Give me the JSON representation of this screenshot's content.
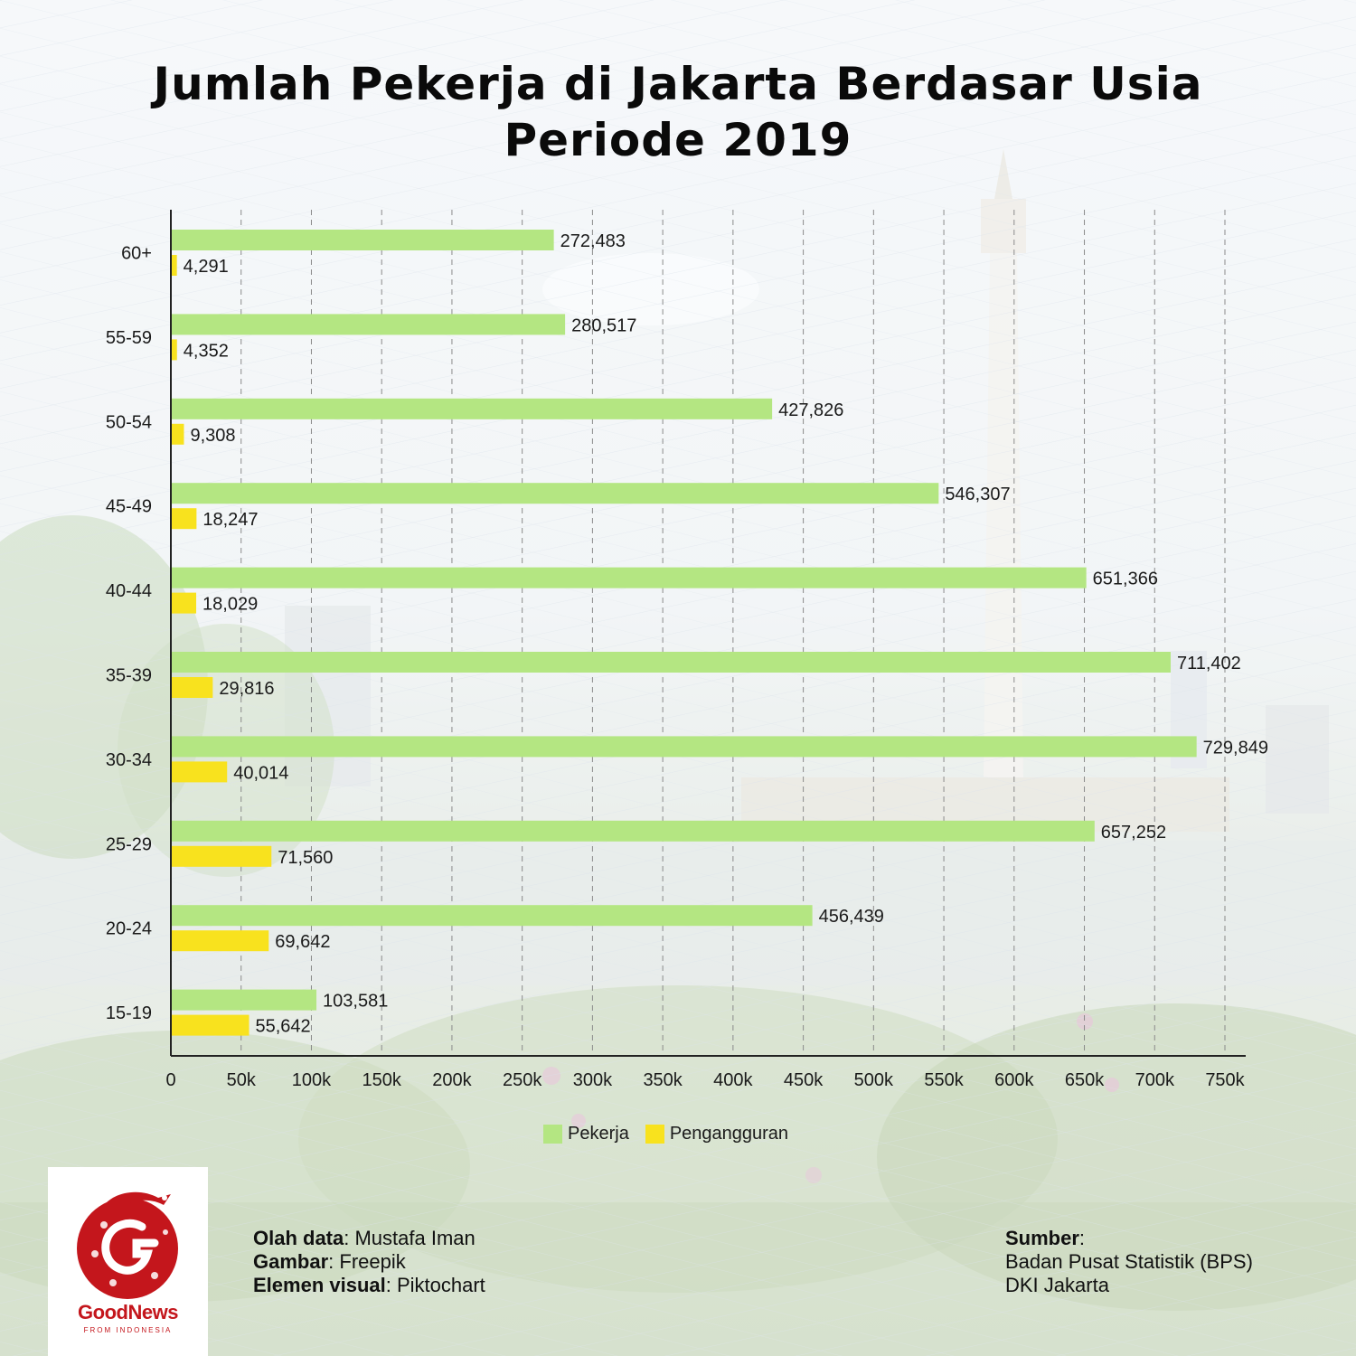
{
  "title_line1": "Jumlah Pekerja di Jakarta Berdasar Usia",
  "title_line2": "Periode 2019",
  "colors": {
    "pekerja": "#b4e682",
    "pengangguran": "#f8e21e",
    "axis": "#222222",
    "grid": "#8a8a8a"
  },
  "chart_data": {
    "type": "bar",
    "orientation": "horizontal",
    "categories": [
      "60+",
      "55-59",
      "50-54",
      "45-49",
      "40-44",
      "35-39",
      "30-34",
      "25-29",
      "20-24",
      "15-19"
    ],
    "series": [
      {
        "name": "Pekerja",
        "values": [
          272483,
          280517,
          427826,
          546307,
          651366,
          711402,
          729849,
          657252,
          456439,
          103581
        ],
        "labels": [
          "272,483",
          "280,517",
          "427,826",
          "546,307",
          "651,366",
          "711,402",
          "729,849",
          "657,252",
          "456,439",
          "103,581"
        ]
      },
      {
        "name": "Pengangguran",
        "values": [
          4291,
          4352,
          9308,
          18247,
          18029,
          29816,
          40014,
          71560,
          69642,
          55642
        ],
        "labels": [
          "4,291",
          "4,352",
          "9,308",
          "18,247",
          "18,029",
          "29,816",
          "40,014",
          "71,560",
          "69,642",
          "55,642"
        ]
      }
    ],
    "xlim": [
      0,
      750000
    ],
    "x_ticks": [
      0,
      50000,
      100000,
      150000,
      200000,
      250000,
      300000,
      350000,
      400000,
      450000,
      500000,
      550000,
      600000,
      650000,
      700000,
      750000
    ],
    "x_tick_labels": [
      "0",
      "50k",
      "100k",
      "150k",
      "200k",
      "250k",
      "300k",
      "350k",
      "400k",
      "450k",
      "500k",
      "550k",
      "600k",
      "650k",
      "700k",
      "750k"
    ],
    "grid": "vertical dashed",
    "legend_position": "bottom-center"
  },
  "legend": {
    "pekerja": "Pekerja",
    "pengangguran": "Pengangguran"
  },
  "credits": {
    "olah_label": "Olah data",
    "olah_value": ": Mustafa Iman",
    "gambar_label": "Gambar",
    "gambar_value": ": Freepik",
    "elemen_label": "Elemen visual",
    "elemen_value": ": Piktochart"
  },
  "source": {
    "label": "Sumber",
    "colon": ":",
    "line1": "Badan Pusat Statistik (BPS)",
    "line2": "DKI Jakarta"
  },
  "logo": {
    "name": "GoodNews",
    "tagline": "FROM INDONESIA"
  }
}
